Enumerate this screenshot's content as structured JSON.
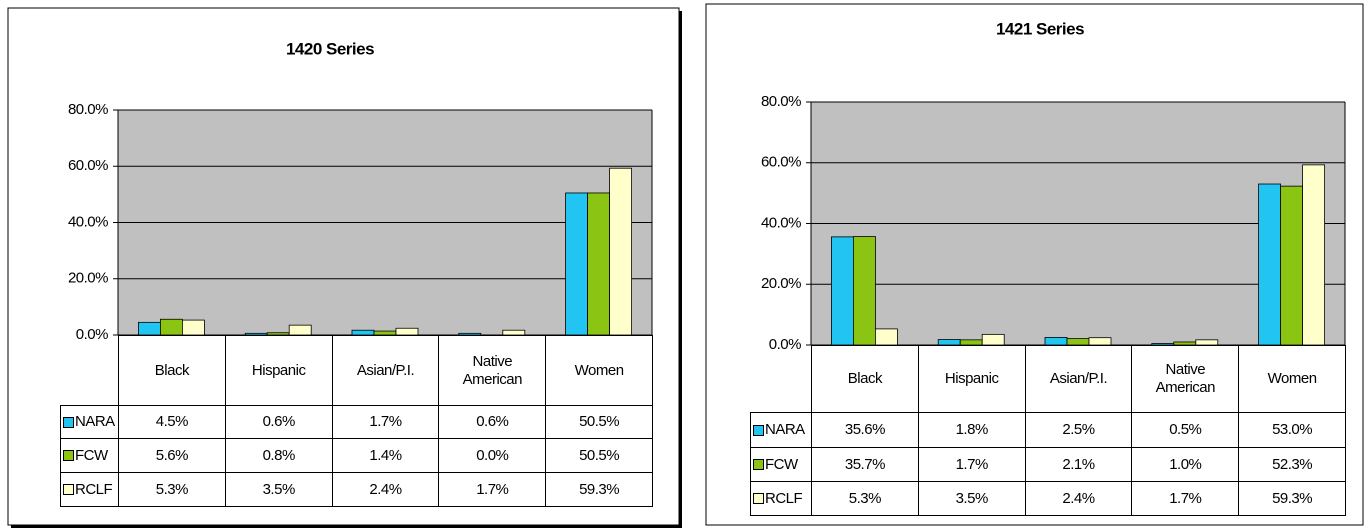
{
  "chart_data": [
    {
      "type": "bar",
      "title": "1420 Series",
      "categories": [
        "Black",
        "Hispanic",
        "Asian/P.I.",
        "Native American",
        "Women"
      ],
      "series": [
        {
          "name": "NARA",
          "color": "#22c4f2",
          "values": [
            4.5,
            0.6,
            1.7,
            0.6,
            50.5
          ],
          "value_labels": [
            "4.5%",
            "0.6%",
            "1.7%",
            "0.6%",
            "50.5%"
          ]
        },
        {
          "name": "FCW",
          "color": "#8cc414",
          "values": [
            5.6,
            0.8,
            1.4,
            0.0,
            50.5
          ],
          "value_labels": [
            "5.6%",
            "0.8%",
            "1.4%",
            "0.0%",
            "50.5%"
          ]
        },
        {
          "name": "RCLF",
          "color": "#ffffcc",
          "values": [
            5.3,
            3.5,
            2.4,
            1.7,
            59.3
          ],
          "value_labels": [
            "5.3%",
            "3.5%",
            "2.4%",
            "1.7%",
            "59.3%"
          ]
        }
      ],
      "ylim": [
        0,
        80
      ],
      "yticks": [
        {
          "value": 0,
          "label": "0.0%"
        },
        {
          "value": 20,
          "label": "20.0%"
        },
        {
          "value": 40,
          "label": "40.0%"
        },
        {
          "value": 60,
          "label": "60.0%"
        },
        {
          "value": 80,
          "label": "80.0%"
        }
      ],
      "grid": true
    },
    {
      "type": "bar",
      "title": "1421 Series",
      "categories": [
        "Black",
        "Hispanic",
        "Asian/P.I.",
        "Native American",
        "Women"
      ],
      "series": [
        {
          "name": "NARA",
          "color": "#22c4f2",
          "values": [
            35.6,
            1.8,
            2.5,
            0.5,
            53.0
          ],
          "value_labels": [
            "35.6%",
            "1.8%",
            "2.5%",
            "0.5%",
            "53.0%"
          ]
        },
        {
          "name": "FCW",
          "color": "#8cc414",
          "values": [
            35.7,
            1.7,
            2.1,
            1.0,
            52.3
          ],
          "value_labels": [
            "35.7%",
            "1.7%",
            "2.1%",
            "1.0%",
            "52.3%"
          ]
        },
        {
          "name": "RCLF",
          "color": "#ffffcc",
          "values": [
            5.3,
            3.5,
            2.4,
            1.7,
            59.3
          ],
          "value_labels": [
            "5.3%",
            "3.5%",
            "2.4%",
            "1.7%",
            "59.3%"
          ]
        }
      ],
      "ylim": [
        0,
        80
      ],
      "yticks": [
        {
          "value": 0,
          "label": "0.0%"
        },
        {
          "value": 20,
          "label": "20.0%"
        },
        {
          "value": 40,
          "label": "40.0%"
        },
        {
          "value": 60,
          "label": "60.0%"
        },
        {
          "value": 80,
          "label": "80.0%"
        }
      ],
      "grid": true
    }
  ]
}
